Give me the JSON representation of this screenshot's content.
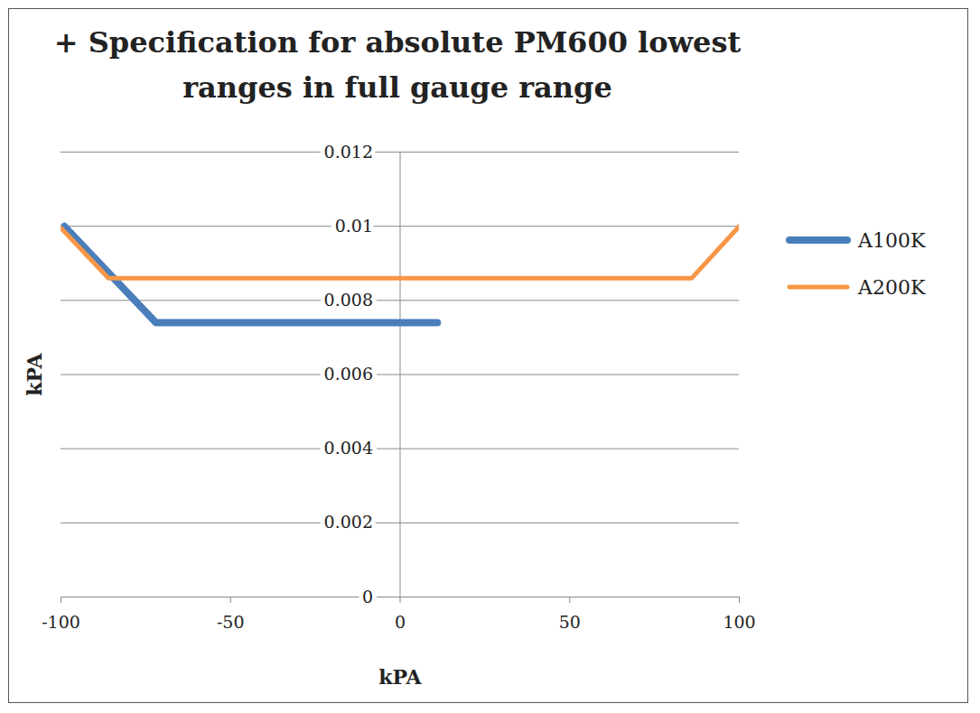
{
  "chart_data": {
    "type": "line",
    "title": "+ Specification for absolute PM600 lowest ranges in full gauge range",
    "xlabel": "kPA",
    "ylabel": "kPA",
    "series": [
      {
        "name": "A100K",
        "color": "#4a7ebb",
        "x": [
          -99,
          -72,
          11
        ],
        "values": [
          0.01,
          0.0074,
          0.0074
        ]
      },
      {
        "name": "A200K",
        "color": "#f79646",
        "x": [
          -100,
          -86,
          86,
          100
        ],
        "values": [
          0.00995,
          0.0086,
          0.0086,
          0.01
        ]
      }
    ],
    "xlim": [
      -100,
      100
    ],
    "xticks": [
      -100,
      -50,
      0,
      50,
      100
    ],
    "ylim": [
      0,
      0.012
    ],
    "yticks": [
      0,
      0.002,
      0.004,
      0.006,
      0.008,
      0.01,
      0.012
    ],
    "grid": true,
    "legend": "right"
  }
}
